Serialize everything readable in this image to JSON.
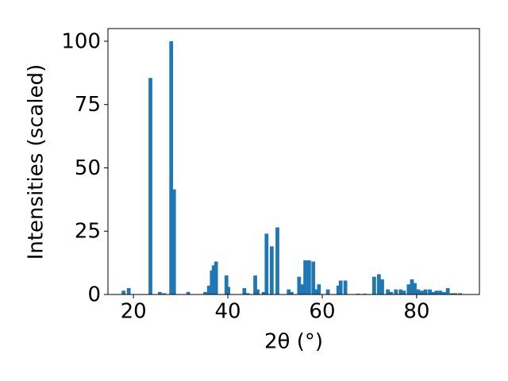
{
  "chart_data": {
    "type": "bar",
    "xlabel": "2θ (°)",
    "ylabel": "Intensities (scaled)",
    "x": [
      17.9,
      19,
      23.6,
      25.6,
      26.5,
      28,
      28.6,
      31.6,
      35.2,
      36,
      36.6,
      37,
      37.5,
      39.7,
      40.1,
      43.5,
      44.2,
      45.8,
      46.3,
      47.6,
      48.2,
      49.3,
      50.5,
      52.9,
      53.5,
      55.1,
      55.7,
      56.4,
      57.2,
      58.1,
      58.7,
      59.3,
      61.2,
      63.4,
      63.9,
      64.9,
      67.6,
      69,
      71,
      72,
      72.7,
      73.9,
      74.6,
      75.6,
      76.6,
      77.3,
      78.3,
      79,
      79.6,
      80.3,
      81.1,
      81.9,
      82.8,
      83.5,
      84.2,
      85,
      85.8,
      86.6,
      87.5,
      88.2,
      89.2
    ],
    "values": [
      1.5,
      2.5,
      85.5,
      1,
      0.5,
      100,
      41.5,
      1,
      1,
      3.5,
      9.5,
      11.5,
      13,
      7.5,
      3,
      2.5,
      0.5,
      7.5,
      2,
      1,
      24,
      19,
      26.5,
      2,
      1,
      7,
      4,
      13.5,
      13.5,
      13,
      2,
      4,
      2,
      3.5,
      5.5,
      5.5,
      0.3,
      0.3,
      7,
      8,
      6,
      2,
      1,
      2,
      2,
      1.5,
      4,
      6,
      4.5,
      2,
      1.5,
      2,
      2,
      1,
      1.5,
      1.5,
      1,
      2.5,
      0.5,
      0.5,
      0.5
    ],
    "color": "#1f77b4",
    "xlim": [
      14.6,
      93.3
    ],
    "xticks": [
      20,
      40,
      60,
      80
    ],
    "ylim": [
      0,
      105
    ],
    "yticks": [
      0,
      25,
      50,
      75,
      100
    ]
  }
}
